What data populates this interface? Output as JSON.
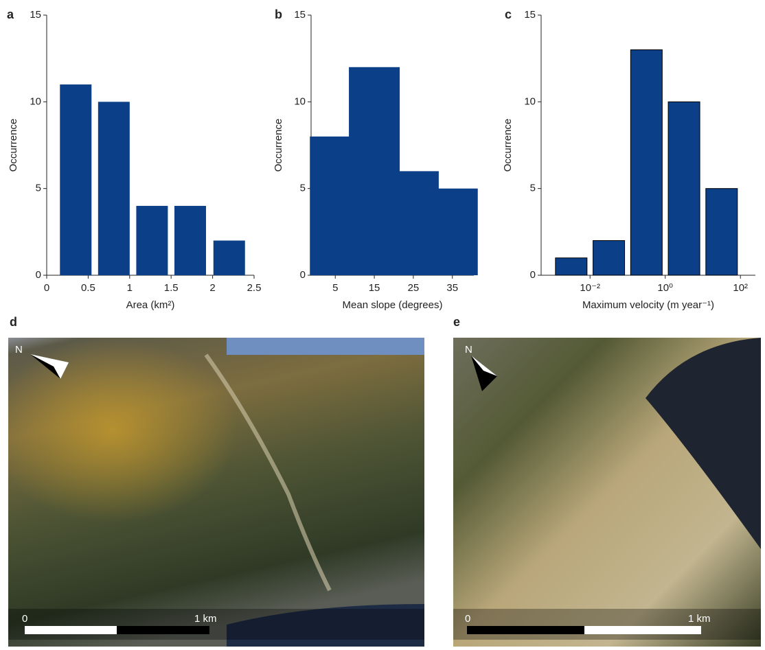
{
  "chart_data": [
    {
      "type": "bar",
      "panel_label": "a",
      "xlabel": "Area (km²)",
      "ylabel": "Occurrence",
      "x": [
        0.35,
        0.81,
        1.27,
        1.73,
        2.2
      ],
      "values": [
        11,
        10,
        4,
        4,
        2
      ],
      "color": "#0b3f87",
      "xlim": [
        0,
        2.5
      ],
      "xticks": [
        0,
        0.5,
        1,
        1.5,
        2,
        2.5
      ],
      "ylim": [
        0,
        15
      ],
      "yticks": [
        0,
        5,
        10,
        15
      ]
    },
    {
      "type": "bar",
      "panel_label": "b",
      "xlabel": "Mean slope (degrees)",
      "ylabel": "Occurrence",
      "x": [
        5,
        15,
        25,
        35
      ],
      "values": [
        8,
        12,
        6,
        5
      ],
      "color": "#0b3f87",
      "xlim": [
        -1.2,
        40.5
      ],
      "xticks": [
        5,
        15,
        25,
        35
      ],
      "ylim": [
        0,
        15
      ],
      "yticks": [
        0,
        5,
        10,
        15
      ]
    },
    {
      "type": "bar",
      "panel_label": "c",
      "xlabel": "Maximum velocity (m year⁻¹)",
      "ylabel": "Occurrence",
      "x": [
        0.00316,
        0.0316,
        0.316,
        3.16,
        31.6
      ],
      "values": [
        1,
        2,
        13,
        10,
        5
      ],
      "color": "#0b3f87",
      "edgecolor": "#000000",
      "xscale": "log",
      "xlim": [
        0.0005,
        250
      ],
      "xticks": [
        {
          "value": 0.01,
          "label": "10⁻²"
        },
        {
          "value": 1,
          "label": "10⁰"
        },
        {
          "value": 100,
          "label": "10²"
        }
      ],
      "ylim": [
        0,
        15
      ],
      "yticks": [
        0,
        5,
        10,
        15
      ]
    }
  ],
  "photos": [
    {
      "panel_label": "d",
      "north": "N",
      "scale_start": "0",
      "scale_end": "1 km"
    },
    {
      "panel_label": "e",
      "north": "N",
      "scale_start": "0",
      "scale_end": "1 km"
    }
  ]
}
